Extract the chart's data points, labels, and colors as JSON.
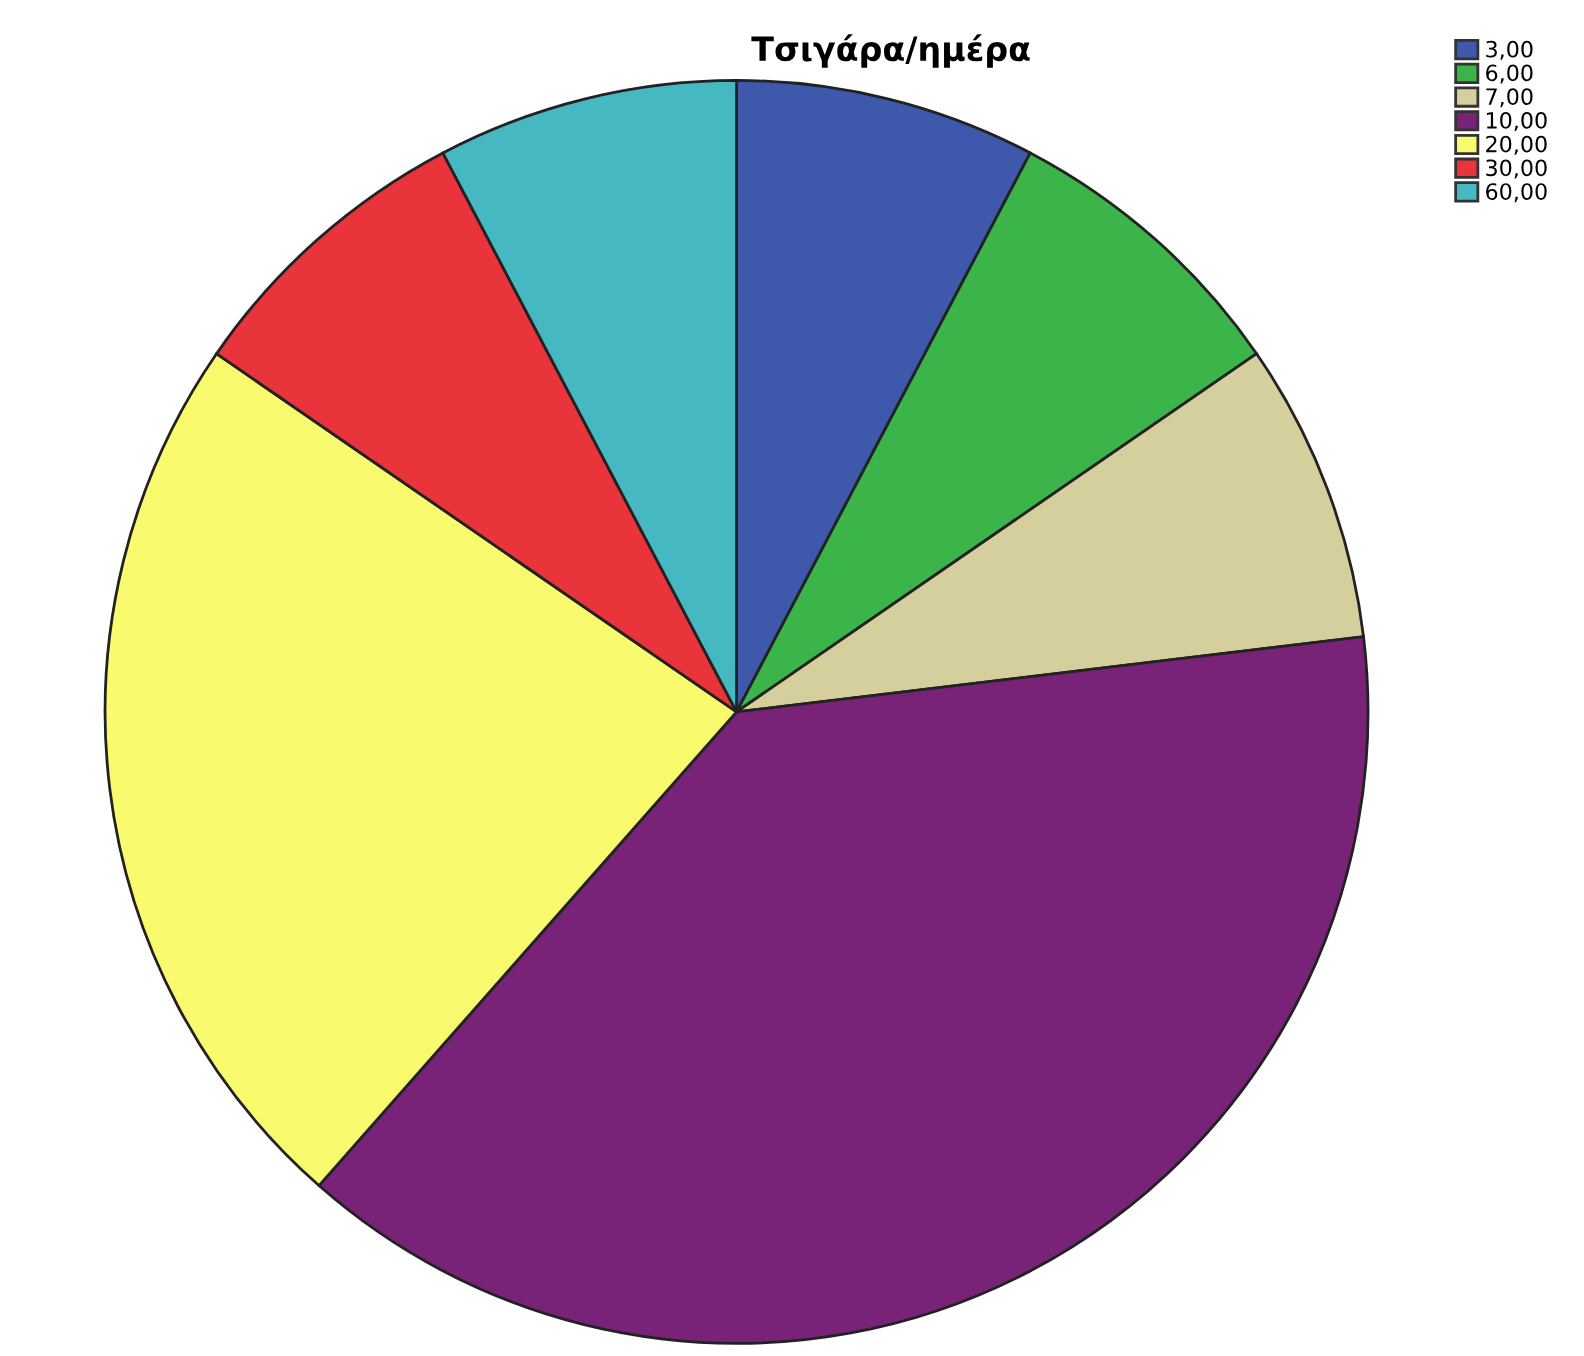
{
  "chart_data": {
    "type": "pie",
    "title": "Τσιγάρα/ημέρα",
    "categories": [
      "3,00",
      "6,00",
      "7,00",
      "10,00",
      "20,00",
      "30,00",
      "60,00"
    ],
    "values": [
      7.7,
      7.7,
      7.7,
      38.4,
      23.1,
      7.7,
      7.7
    ],
    "colors": [
      "#3e58ac",
      "#3bb44a",
      "#d4cf9c",
      "#782378",
      "#fafa6e",
      "#e8343a",
      "#46b8c2"
    ],
    "legend": "top right"
  }
}
